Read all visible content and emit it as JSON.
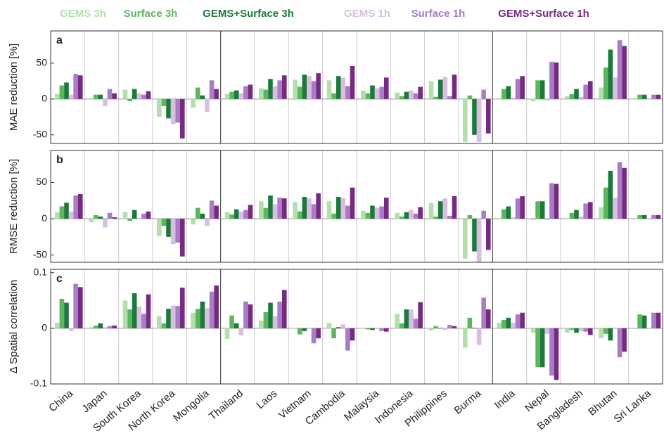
{
  "chart_data": [
    {
      "type": "bar",
      "panel": "a",
      "ylabel": "MAE reduction [%]",
      "ylim": [
        -62,
        95
      ],
      "yticks": [
        -50,
        0,
        50
      ],
      "series": [
        {
          "name": "GEMS 3h",
          "color": "#b3dfac",
          "values": [
            7,
            0,
            13,
            -25,
            -12,
            7,
            15,
            27,
            26,
            12,
            9,
            25,
            -60,
            1,
            -3,
            4,
            16,
            1
          ]
        },
        {
          "name": "Surface 3h",
          "color": "#5db65f",
          "values": [
            19,
            6,
            -3,
            -10,
            16,
            10,
            13,
            17,
            8,
            8,
            4,
            3,
            5,
            14,
            26,
            7,
            44,
            6
          ]
        },
        {
          "name": "GEMS+Surface 3h",
          "color": "#1b7a3a",
          "values": [
            23,
            6,
            14,
            -27,
            5,
            12,
            28,
            34,
            32,
            19,
            10,
            27,
            -50,
            18,
            26,
            14,
            69,
            6
          ]
        },
        {
          "name": "GEMS 1h",
          "color": "#d9bde2",
          "values": [
            6,
            -10,
            8,
            -35,
            -18,
            8,
            18,
            32,
            30,
            15,
            12,
            31,
            -60,
            2,
            -2,
            3,
            30,
            1
          ]
        },
        {
          "name": "Surface 1h",
          "color": "#a77dc4",
          "values": [
            35,
            14,
            6,
            -33,
            26,
            18,
            26,
            25,
            18,
            17,
            8,
            4,
            13,
            28,
            52,
            20,
            82,
            6
          ]
        },
        {
          "name": "GEMS+Surface 1h",
          "color": "#762a83",
          "values": [
            33,
            8,
            11,
            -55,
            14,
            20,
            33,
            36,
            46,
            30,
            17,
            34,
            -48,
            32,
            51,
            25,
            74,
            6
          ]
        }
      ]
    },
    {
      "type": "bar",
      "panel": "b",
      "ylabel": "RMSE reduction [%]",
      "ylim": [
        -60,
        94
      ],
      "yticks": [
        -50,
        0,
        50
      ],
      "series": [
        {
          "values": [
            9,
            -5,
            9,
            -24,
            -8,
            9,
            24,
            23,
            24,
            11,
            8,
            22,
            -55,
            1,
            -2,
            1,
            16,
            1
          ]
        },
        {
          "values": [
            17,
            5,
            -3,
            -10,
            15,
            6,
            15,
            10,
            7,
            8,
            3,
            3,
            5,
            13,
            24,
            8,
            43,
            5
          ]
        },
        {
          "values": [
            22,
            3,
            12,
            -25,
            7,
            13,
            32,
            30,
            30,
            18,
            9,
            24,
            -45,
            17,
            24,
            12,
            66,
            5
          ]
        },
        {
          "values": [
            10,
            -12,
            1,
            -35,
            -10,
            10,
            20,
            28,
            28,
            15,
            12,
            28,
            -60,
            2,
            -2,
            3,
            29,
            1
          ]
        },
        {
          "values": [
            32,
            8,
            7,
            -33,
            25,
            12,
            29,
            20,
            18,
            17,
            7,
            4,
            11,
            28,
            49,
            21,
            78,
            5
          ]
        },
        {
          "values": [
            34,
            2,
            10,
            -52,
            18,
            19,
            28,
            35,
            43,
            29,
            16,
            31,
            -43,
            31,
            48,
            23,
            70,
            5
          ]
        }
      ]
    },
    {
      "type": "bar",
      "panel": "c",
      "ylabel": "Δ Spatial correlation",
      "ylim": [
        -0.1,
        0.106
      ],
      "yticks": [
        -0.1,
        0,
        0.1
      ],
      "categories": [
        "China",
        "Japan",
        "South Korea",
        "North Korea",
        "Mongolia",
        "Thailand",
        "Laos",
        "Vietnam",
        "Cambodia",
        "Malaysia",
        "Indonesia",
        "Philippines",
        "Burma",
        "India",
        "Nepal",
        "Bangladesh",
        "Bhutan",
        "Sri Lanka"
      ],
      "series": [
        {
          "values": [
            0.01,
            0.002,
            0.05,
            0.022,
            0.028,
            -0.019,
            0.014,
            0.001,
            0.01,
            0.001,
            0.026,
            -0.004,
            -0.035,
            0.01,
            -0.008,
            -0.008,
            -0.018,
            0.001
          ]
        },
        {
          "values": [
            0.053,
            0.005,
            0.034,
            0.009,
            0.035,
            0.023,
            0.029,
            -0.011,
            -0.018,
            -0.002,
            0.009,
            0.004,
            0.019,
            0.015,
            -0.07,
            -0.003,
            -0.01,
            0.025
          ]
        },
        {
          "values": [
            0.046,
            0.009,
            0.063,
            0.035,
            0.048,
            0.009,
            0.046,
            -0.005,
            0.002,
            -0.003,
            0.034,
            0.001,
            0.001,
            0.019,
            -0.07,
            -0.008,
            -0.022,
            0.023
          ]
        },
        {
          "values": [
            -0.005,
            0.002,
            0.039,
            0.041,
            0.036,
            -0.013,
            0.022,
            0.001,
            0.007,
            0.001,
            0.034,
            -0.003,
            -0.03,
            0.01,
            -0.01,
            -0.005,
            0.001,
            0.001
          ]
        },
        {
          "values": [
            0.08,
            0.004,
            0.026,
            0.04,
            0.066,
            0.048,
            0.048,
            -0.027,
            -0.04,
            -0.005,
            0.017,
            0.006,
            0.055,
            0.025,
            -0.085,
            -0.006,
            -0.052,
            0.028
          ]
        },
        {
          "values": [
            0.074,
            0.005,
            0.061,
            0.073,
            0.077,
            0.043,
            0.069,
            -0.018,
            -0.022,
            -0.006,
            0.047,
            0.004,
            0.034,
            0.028,
            -0.093,
            -0.012,
            -0.042,
            0.028
          ]
        }
      ]
    }
  ]
}
